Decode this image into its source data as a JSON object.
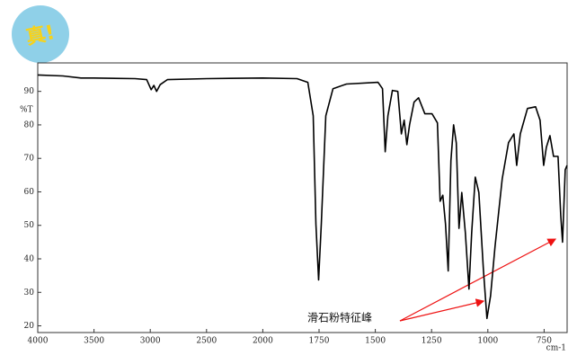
{
  "chart_data": {
    "type": "line",
    "badge": "真!",
    "y_label": "%T",
    "x_label": "cm-1",
    "annotation": "滑石粉特征峰",
    "color": "#000000",
    "xlim": [
      4000,
      648
    ],
    "xticks": [
      4000,
      3500,
      3000,
      2500,
      2000,
      1750,
      1500,
      1250,
      1000,
      750
    ],
    "ylim": [
      18,
      98.5
    ],
    "yticks": [
      20,
      30,
      40,
      50,
      60,
      70,
      80,
      90
    ],
    "x": [
      4000,
      3776,
      3616,
      3500,
      3136,
      3032,
      2992,
      2968,
      2944,
      2912,
      2848,
      2496,
      2000,
      1848,
      1800,
      1776,
      1764,
      1752,
      1740,
      1720,
      1688,
      1628,
      1488,
      1468,
      1456,
      1444,
      1424,
      1400,
      1384,
      1372,
      1360,
      1348,
      1328,
      1308,
      1280,
      1248,
      1224,
      1212,
      1200,
      1188,
      1176,
      1164,
      1152,
      1140,
      1128,
      1116,
      1100,
      1084,
      1072,
      1056,
      1040,
      1020,
      1004,
      988,
      968,
      936,
      908,
      884,
      872,
      856,
      824,
      788,
      768,
      752,
      740,
      724,
      708,
      688,
      676,
      668,
      656,
      648
    ],
    "values": [
      94.9,
      94.6,
      94.0,
      94.0,
      93.8,
      93.5,
      90.5,
      91.8,
      90,
      92,
      93.5,
      93.8,
      94,
      93.8,
      92.7,
      82.7,
      50.4,
      33.7,
      50.4,
      82.7,
      90.8,
      92.2,
      92.7,
      90.8,
      72,
      82.7,
      90.3,
      90,
      77.3,
      81.4,
      74.1,
      80,
      86.8,
      88.1,
      83.3,
      83.3,
      80.6,
      57.2,
      59,
      50.4,
      36.4,
      69.3,
      80,
      74.6,
      49.1,
      59.8,
      47.7,
      31,
      47.7,
      64.4,
      59.8,
      37,
      22.2,
      28.9,
      43.7,
      63.9,
      74.7,
      77.3,
      67.9,
      77.3,
      84.9,
      85.4,
      81.4,
      67.9,
      73.3,
      76.8,
      70.6,
      70.6,
      53.1,
      45,
      66.6,
      67.9
    ]
  }
}
